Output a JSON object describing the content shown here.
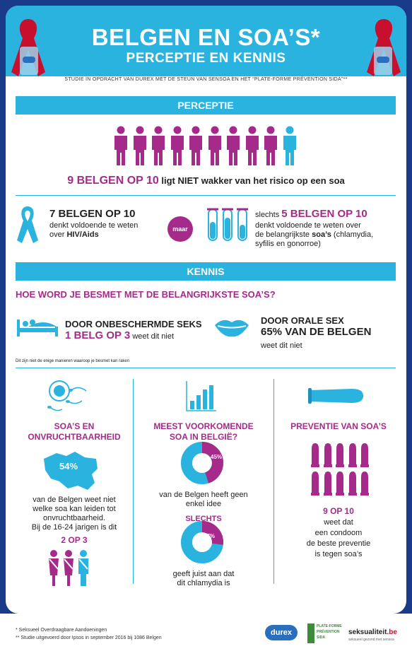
{
  "header": {
    "title": "BELGEN EN SOA’S*",
    "subtitle": "PERCEPTIE EN  KENNIS",
    "study_line": "STUDIE IN OPDRACHT VAN DUREX MET DE STEUN VAN SENSOA EN HET “PLATE-FORME PRÉVENTION SIDA”**"
  },
  "perceptie": {
    "band": "PERCEPTIE",
    "people_total": 10,
    "people_highlighted": 9,
    "claim_strong": "9 BELGEN OP 10",
    "claim_rest": " ligt NIET wakker van het risico op een soa",
    "left_strong": "7 BELGEN OP 10",
    "left_line1": "denkt voldoende te weten",
    "left_line2a": "over ",
    "left_line2b": "HIV/Aids",
    "maar": "maar",
    "right_pre": "slechts ",
    "right_strong": "5 BELGEN OP 10",
    "right_line1": "denkt voldoende te weten over",
    "right_line2a": "de belangrijkste ",
    "right_line2b": "soa’s",
    "right_line2c": " (chlamydia,",
    "right_line3": "syfilis en gonorroe)"
  },
  "kennis": {
    "band": "KENNIS",
    "question": "HOE WORD JE BESMET MET DE BELANGRIJKSTE SOA’S?",
    "seks_title": "DOOR ONBESCHERMDE SEKS",
    "seks_strong": "1 BELG OP 3",
    "seks_rest": " weet dit niet",
    "oral_title": "DOOR ORALE SEX",
    "oral_strong": "65% VAN DE BELGEN",
    "oral_rest": "weet dit niet",
    "note": "Dit zijn niet de enige manieren waaroop je besmet kan raken"
  },
  "col1": {
    "title1": "SOA’S EN",
    "title2": "ONVRUCHTBAARHEID",
    "map_pct": "54%",
    "text1": "van de Belgen weet niet",
    "text2": "welke soa kan leiden tot",
    "text3": "onvruchtbaarheid.",
    "text4": "Bij de 16-24 jarigen is dit",
    "strong": "2 OP 3"
  },
  "col2": {
    "title1": "MEEST VOORKOMENDE",
    "title2": "SOA IN BELGIË?",
    "pie1_label": "45%",
    "pie1_value": 45,
    "text1": "van de Belgen heeft geen",
    "text2": "enkel idee",
    "slechts": "SLECHTS",
    "pie2_label": "27%",
    "pie2_value": 27,
    "text3": "geeft juist aan dat",
    "text4": "dit chlamydia is"
  },
  "col3": {
    "title": "PREVENTIE VAN SOA’S",
    "condoms": 10,
    "strong": "9 OP 10",
    "text1": "weet dat",
    "text2": "een condoom",
    "text3": "de beste preventie",
    "text4": "is tegen soa’s"
  },
  "footer": {
    "note1": "*  Seksueel Overdraagbare Aandoeningen",
    "note2": "** Studie uitgevoerd door Ipsos in september 2016 bij 1086 Belgen",
    "logo_durex": "durex",
    "logo_pf1": "PLATE-FORME",
    "logo_pf2": "PRÉVENTION",
    "logo_pf3": "SIDA",
    "logo_sek_a": "seksualiteit",
    "logo_sek_b": ".be",
    "logo_sek_sub": "seksueel gezond met sensoa"
  },
  "colors": {
    "blue": "#2bb3e0",
    "magenta": "#a52a8a",
    "navy": "#1a3a8a",
    "red": "#c8102e"
  }
}
